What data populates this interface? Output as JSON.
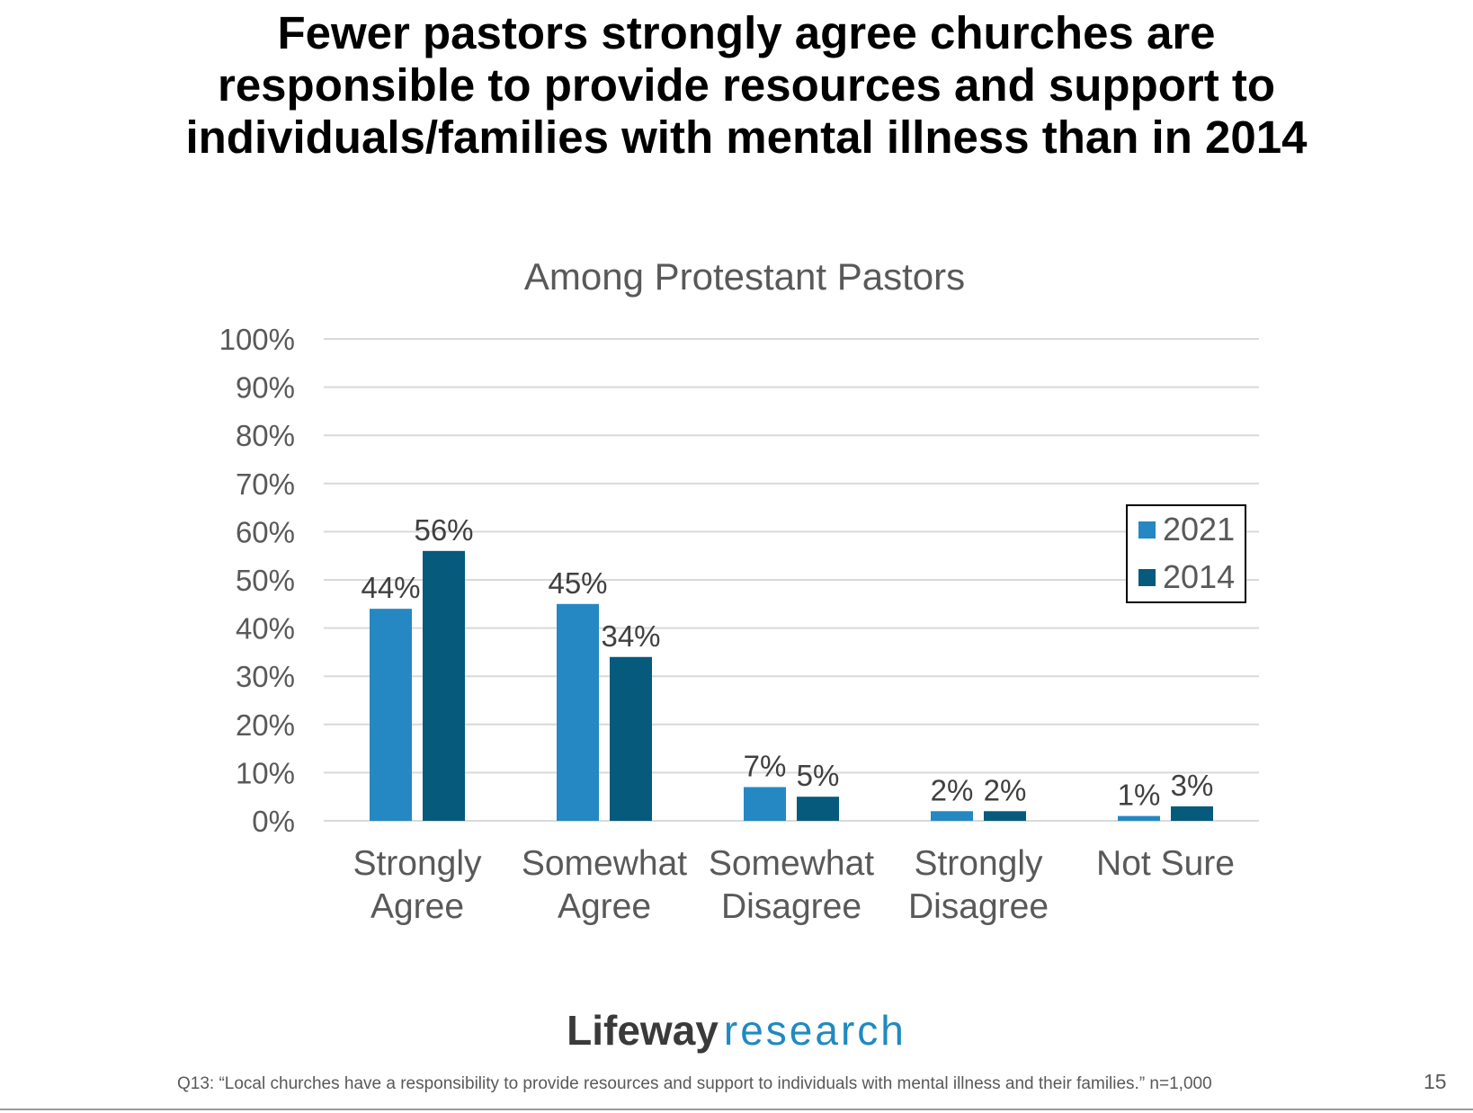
{
  "slide": {
    "title_lines": [
      "Fewer pastors strongly agree churches are",
      "responsible to provide resources and support to",
      "individuals/families with mental illness than in 2014"
    ],
    "brand_part1": "Lifeway",
    "brand_part2": "research",
    "footnote": "Q13: “Local churches have a responsibility to provide resources and support to individuals with mental illness and their families.” n=1,000",
    "page_number": "15"
  },
  "colors": {
    "series_2021": "#2688c2",
    "series_2014": "#065a7c",
    "gridline": "#d9d9d9",
    "axis_text": "#595959",
    "label_text": "#404040"
  },
  "chart_data": {
    "type": "bar",
    "title": "Among Protestant Pastors",
    "categories": [
      [
        "Strongly",
        "Agree"
      ],
      [
        "Somewhat",
        "Agree"
      ],
      [
        "Somewhat",
        "Disagree"
      ],
      [
        "Strongly",
        "Disagree"
      ],
      [
        "Not Sure"
      ]
    ],
    "series": [
      {
        "name": "2021",
        "values": [
          44,
          45,
          7,
          2,
          1
        ],
        "labels": [
          "44%",
          "45%",
          "7%",
          "2%",
          "1%"
        ]
      },
      {
        "name": "2014",
        "values": [
          56,
          34,
          5,
          2,
          3
        ],
        "labels": [
          "56%",
          "34%",
          "5%",
          "2%",
          "3%"
        ]
      }
    ],
    "ylim": [
      0,
      100
    ],
    "yticks": [
      "0%",
      "10%",
      "20%",
      "30%",
      "40%",
      "50%",
      "60%",
      "70%",
      "80%",
      "90%",
      "100%"
    ],
    "grid": true,
    "legend_position": "right"
  }
}
